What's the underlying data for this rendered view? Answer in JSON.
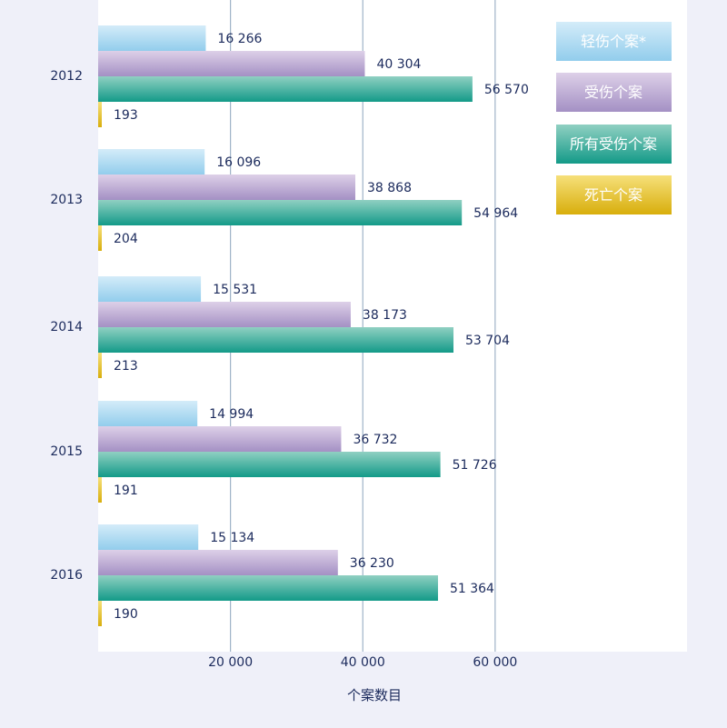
{
  "chart_data": {
    "type": "bar",
    "orientation": "horizontal",
    "categories": [
      "2012",
      "2013",
      "2014",
      "2015",
      "2016"
    ],
    "series": [
      {
        "name": "轻伤个案*",
        "values": [
          16266,
          16096,
          15531,
          14994,
          15134
        ],
        "color": "#a6d6ef"
      },
      {
        "name": "受伤个案",
        "values": [
          40304,
          38868,
          38173,
          36732,
          36230
        ],
        "color": "#b09bcc"
      },
      {
        "name": "所有受伤个案",
        "values": [
          56570,
          54964,
          53704,
          51726,
          51364
        ],
        "color": "#23a291"
      },
      {
        "name": "死亡个案",
        "values": [
          193,
          204,
          213,
          191,
          190
        ],
        "color": "#e6bd1e"
      }
    ],
    "data_labels": [
      [
        "16 266",
        "40 304",
        "56 570",
        "193"
      ],
      [
        "16 096",
        "38 868",
        "54 964",
        "204"
      ],
      [
        "15 531",
        "38 173",
        "53 704",
        "213"
      ],
      [
        "14 994",
        "36 732",
        "51 726",
        "191"
      ],
      [
        "15 134",
        "36 230",
        "51 364",
        "190"
      ]
    ],
    "x_ticks": [
      20000,
      40000,
      60000
    ],
    "x_tick_labels": [
      "20 000",
      "40 000",
      "60 000"
    ],
    "xlim": [
      0,
      89000
    ],
    "xlabel": "个案数目",
    "grid": "vertical",
    "legend_position": "top-right"
  }
}
